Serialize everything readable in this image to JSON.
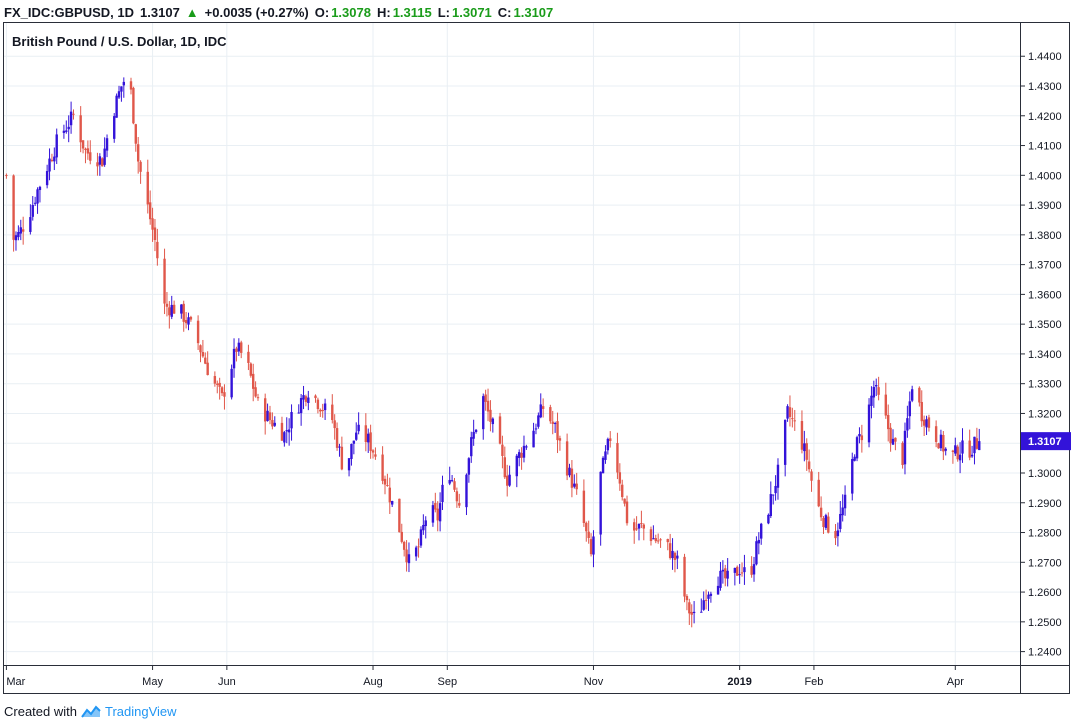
{
  "header": {
    "symbol": "FX_IDC:GBPUSD, 1D",
    "last": "1.3107",
    "arrow": "▲",
    "change": "+0.0035 (+0.27%)",
    "o_label": "O:",
    "o_value": "1.3078",
    "h_label": "H:",
    "h_value": "1.3115",
    "l_label": "L:",
    "l_value": "1.3071",
    "c_label": "C:",
    "c_value": "1.3107"
  },
  "footer": {
    "prefix": "Created with",
    "brand": "TradingView"
  },
  "colors": {
    "up": "#3313d9",
    "down": "#e0574a",
    "grid": "#e9eff4",
    "axis": "#2a2e39",
    "price_tag": "#3313d9"
  },
  "chart_data": {
    "type": "candlestick",
    "title": "British Pound / U.S. Dollar, 1D, IDC",
    "ylim": [
      1.2355,
      1.4515
    ],
    "y_ticks": [
      "1.4400",
      "1.4300",
      "1.4200",
      "1.4100",
      "1.4000",
      "1.3900",
      "1.3800",
      "1.3700",
      "1.3600",
      "1.3500",
      "1.3400",
      "1.3300",
      "1.3200",
      "1.3100",
      "1.3000",
      "1.2900",
      "1.2800",
      "1.2700",
      "1.2600",
      "1.2500",
      "1.2400"
    ],
    "x_ticks": [
      {
        "label": "Mar",
        "day": 0
      },
      {
        "label": "May",
        "day": 61
      },
      {
        "label": "Jun",
        "day": 92
      },
      {
        "label": "Aug",
        "day": 153
      },
      {
        "label": "Sep",
        "day": 184
      },
      {
        "label": "Nov",
        "day": 245
      },
      {
        "label": "2019",
        "day": 306,
        "bold": true
      },
      {
        "label": "Feb",
        "day": 337
      },
      {
        "label": "Apr",
        "day": 396
      }
    ],
    "last_price": "1.3107",
    "last_value": 1.3107,
    "keypoints": [
      [
        0,
        1.4
      ],
      [
        2,
        1.378
      ],
      [
        5,
        1.38
      ],
      [
        9,
        1.386
      ],
      [
        13,
        1.395
      ],
      [
        18,
        1.405
      ],
      [
        22,
        1.413
      ],
      [
        28,
        1.42
      ],
      [
        33,
        1.408
      ],
      [
        40,
        1.405
      ],
      [
        44,
        1.42
      ],
      [
        48,
        1.43
      ],
      [
        51,
        1.435
      ],
      [
        55,
        1.405
      ],
      [
        58,
        1.393
      ],
      [
        62,
        1.378
      ],
      [
        66,
        1.356
      ],
      [
        72,
        1.355
      ],
      [
        78,
        1.348
      ],
      [
        85,
        1.333
      ],
      [
        90,
        1.325
      ],
      [
        96,
        1.342
      ],
      [
        100,
        1.338
      ],
      [
        105,
        1.323
      ],
      [
        110,
        1.318
      ],
      [
        116,
        1.313
      ],
      [
        121,
        1.322
      ],
      [
        126,
        1.328
      ],
      [
        131,
        1.323
      ],
      [
        136,
        1.318
      ],
      [
        141,
        1.3
      ],
      [
        146,
        1.314
      ],
      [
        151,
        1.311
      ],
      [
        156,
        1.303
      ],
      [
        162,
        1.287
      ],
      [
        168,
        1.27
      ],
      [
        172,
        1.275
      ],
      [
        176,
        1.288
      ],
      [
        180,
        1.285
      ],
      [
        184,
        1.303
      ],
      [
        189,
        1.29
      ],
      [
        194,
        1.31
      ],
      [
        199,
        1.325
      ],
      [
        204,
        1.313
      ],
      [
        209,
        1.298
      ],
      [
        214,
        1.306
      ],
      [
        219,
        1.313
      ],
      [
        224,
        1.322
      ],
      [
        229,
        1.315
      ],
      [
        234,
        1.302
      ],
      [
        239,
        1.29
      ],
      [
        244,
        1.272
      ],
      [
        248,
        1.299
      ],
      [
        252,
        1.312
      ],
      [
        256,
        1.298
      ],
      [
        260,
        1.28
      ],
      [
        265,
        1.282
      ],
      [
        270,
        1.278
      ],
      [
        275,
        1.276
      ],
      [
        280,
        1.27
      ],
      [
        284,
        1.255
      ],
      [
        288,
        1.25
      ],
      [
        292,
        1.26
      ],
      [
        297,
        1.265
      ],
      [
        302,
        1.264
      ],
      [
        306,
        1.268
      ],
      [
        310,
        1.265
      ],
      [
        314,
        1.278
      ],
      [
        318,
        1.288
      ],
      [
        322,
        1.3
      ],
      [
        326,
        1.32
      ],
      [
        330,
        1.315
      ],
      [
        334,
        1.305
      ],
      [
        338,
        1.29
      ],
      [
        342,
        1.283
      ],
      [
        346,
        1.28
      ],
      [
        350,
        1.29
      ],
      [
        354,
        1.308
      ],
      [
        358,
        1.315
      ],
      [
        362,
        1.329
      ],
      [
        366,
        1.32
      ],
      [
        370,
        1.31
      ],
      [
        374,
        1.305
      ],
      [
        378,
        1.33
      ],
      [
        382,
        1.32
      ],
      [
        386,
        1.315
      ],
      [
        390,
        1.31
      ],
      [
        394,
        1.305
      ],
      [
        398,
        1.308
      ],
      [
        402,
        1.308
      ],
      [
        406,
        1.3107
      ]
    ]
  }
}
